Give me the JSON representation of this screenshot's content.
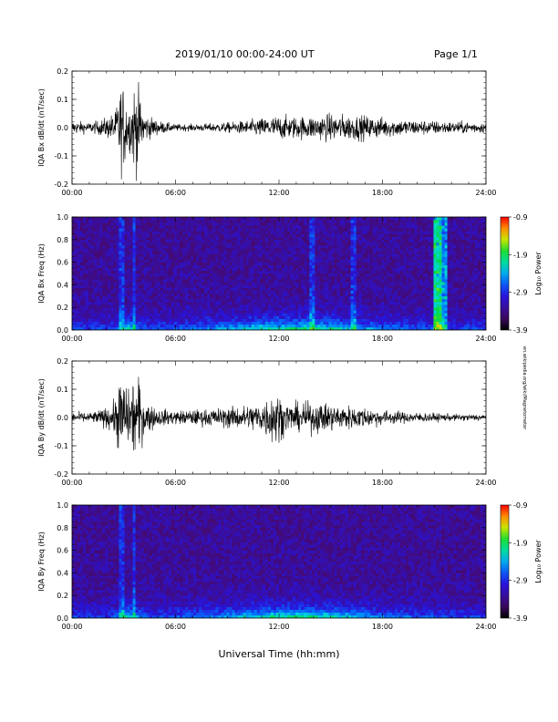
{
  "header": {
    "date_range": "2019/01/10  00:00-24:00 UT",
    "page_label": "Page 1/1"
  },
  "x_axis_title": "Universal Time (hh:mm)",
  "side_credit": "en.wikipedia.org/wiki/Magnetometer",
  "time_ticks": [
    "00:00",
    "06:00",
    "12:00",
    "18:00",
    "24:00"
  ],
  "colorbar_ticks": [
    "-0.9",
    "-1.9",
    "-2.9",
    "-3.9"
  ],
  "colors": {
    "trace": "#000000",
    "spectrogram_background": "#3a0a5a"
  },
  "chart_data": [
    {
      "type": "line",
      "name": "bx-dbdt",
      "ylabel": "IQA Bx dB/dt (nT/sec)",
      "xlim": [
        0,
        24
      ],
      "ylim": [
        -0.2,
        0.2
      ],
      "yticks": [
        "0.2",
        "0.1",
        "0.0",
        "-0.1",
        "-0.2"
      ],
      "envelope": {
        "hours": [
          0,
          0.5,
          1,
          1.5,
          2,
          2.5,
          2.8,
          3.0,
          3.3,
          3.6,
          3.8,
          4.2,
          5,
          6,
          7,
          8,
          9,
          10,
          11,
          12,
          13,
          14,
          15,
          16,
          17,
          18,
          19,
          20,
          21,
          22,
          23,
          24
        ],
        "amplitude": [
          0.04,
          0.035,
          0.03,
          0.04,
          0.06,
          0.09,
          0.25,
          0.25,
          0.12,
          0.25,
          0.25,
          0.08,
          0.04,
          0.02,
          0.02,
          0.025,
          0.03,
          0.04,
          0.055,
          0.07,
          0.065,
          0.07,
          0.08,
          0.075,
          0.07,
          0.06,
          0.05,
          0.045,
          0.04,
          0.035,
          0.035,
          0.03
        ]
      }
    },
    {
      "type": "heatmap",
      "name": "bx-spectrogram",
      "ylabel": "IQA Bx Freq (Hz)",
      "colorbar_label": "Log₁₀ Power",
      "xlim": [
        0,
        24
      ],
      "ylim": [
        0.0,
        1.0
      ],
      "yticks": [
        "1.0",
        "0.8",
        "0.6",
        "0.4",
        "0.2",
        "0.0"
      ],
      "crange": [
        -3.9,
        -0.9
      ],
      "vertical_stripes_hours": [
        2.9,
        3.6,
        13.9,
        16.3,
        21.0,
        21.3
      ],
      "bright_band_hours": [
        20.9,
        21.7
      ]
    },
    {
      "type": "line",
      "name": "by-dbdt",
      "ylabel": "IQA By dB/dt (nT/sec)",
      "xlim": [
        0,
        24
      ],
      "ylim": [
        -0.2,
        0.2
      ],
      "yticks": [
        "0.2",
        "0.1",
        "0.0",
        "-0.1",
        "-0.2"
      ],
      "envelope": {
        "hours": [
          0,
          0.5,
          1,
          1.5,
          2,
          2.5,
          2.8,
          3.0,
          3.3,
          3.6,
          3.8,
          4.2,
          5,
          6,
          7,
          8,
          9,
          10,
          11,
          11.8,
          12.3,
          13,
          14,
          15,
          16,
          17,
          18,
          19,
          20,
          21,
          22,
          23,
          24
        ],
        "amplitude": [
          0.03,
          0.03,
          0.03,
          0.04,
          0.06,
          0.1,
          0.25,
          0.25,
          0.14,
          0.25,
          0.25,
          0.1,
          0.05,
          0.04,
          0.045,
          0.05,
          0.06,
          0.07,
          0.09,
          0.17,
          0.09,
          0.08,
          0.09,
          0.08,
          0.07,
          0.06,
          0.045,
          0.035,
          0.03,
          0.025,
          0.02,
          0.02,
          0.02
        ]
      }
    },
    {
      "type": "heatmap",
      "name": "by-spectrogram",
      "ylabel": "IQA By Freq (Hz)",
      "colorbar_label": "Log₁₀ Power",
      "xlim": [
        0,
        24
      ],
      "ylim": [
        0.0,
        1.0
      ],
      "yticks": [
        "1.0",
        "0.8",
        "0.6",
        "0.4",
        "0.2",
        "0.0"
      ],
      "crange": [
        -3.9,
        -0.9
      ],
      "vertical_stripes_hours": [
        2.9,
        3.6
      ],
      "bright_band_hours": []
    }
  ]
}
